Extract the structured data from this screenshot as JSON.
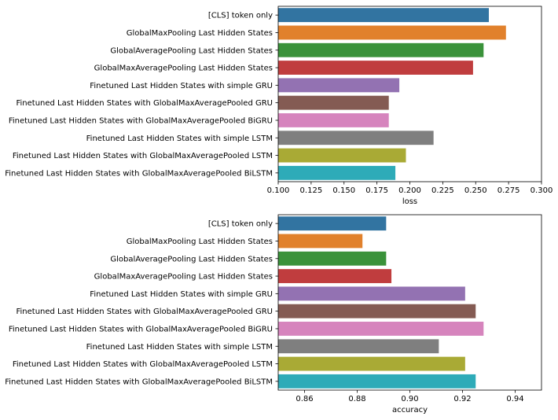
{
  "chart_data": [
    {
      "type": "bar",
      "orientation": "horizontal",
      "categories": [
        "[CLS] token only",
        "GlobalMaxPooling Last Hidden States",
        "GlobalAveragePooling Last Hidden States",
        "GlobalMaxAveragePooling Last Hidden States",
        "Finetuned Last Hidden States with simple GRU",
        "Finetuned Last Hidden States with GlobalMaxAveragePooled GRU",
        "Finetuned Last Hidden States with GlobalMaxAveragePooled BiGRU",
        "Finetuned Last Hidden States with simple LSTM",
        "Finetuned Last Hidden States with GlobalMaxAveragePooled LSTM",
        "Finetuned Last Hidden States with GlobalMaxAveragePooled BiLSTM"
      ],
      "values": [
        0.26,
        0.273,
        0.256,
        0.248,
        0.192,
        0.184,
        0.184,
        0.218,
        0.197,
        0.189
      ],
      "xlabel": "loss",
      "xlim": [
        0.1,
        0.3
      ],
      "xticks": [
        "0.100",
        "0.125",
        "0.150",
        "0.175",
        "0.200",
        "0.225",
        "0.250",
        "0.275",
        "0.300"
      ],
      "grid": false
    },
    {
      "type": "bar",
      "orientation": "horizontal",
      "categories": [
        "[CLS] token only",
        "GlobalMaxPooling Last Hidden States",
        "GlobalAveragePooling Last Hidden States",
        "GlobalMaxAveragePooling Last Hidden States",
        "Finetuned Last Hidden States with simple GRU",
        "Finetuned Last Hidden States with GlobalMaxAveragePooled GRU",
        "Finetuned Last Hidden States with GlobalMaxAveragePooled BiGRU",
        "Finetuned Last Hidden States with simple LSTM",
        "Finetuned Last Hidden States with GlobalMaxAveragePooled LSTM",
        "Finetuned Last Hidden States with GlobalMaxAveragePooled BiLSTM"
      ],
      "values": [
        0.891,
        0.882,
        0.891,
        0.893,
        0.921,
        0.925,
        0.928,
        0.911,
        0.921,
        0.925
      ],
      "xlabel": "accuracy",
      "xlim": [
        0.85,
        0.95
      ],
      "xticks": [
        "0.86",
        "0.88",
        "0.90",
        "0.92",
        "0.94"
      ],
      "grid": false
    }
  ],
  "colors": [
    "#3274a1",
    "#e1812c",
    "#3a923a",
    "#c03d3e",
    "#9372b2",
    "#845b53",
    "#d684bd",
    "#7f7f7f",
    "#a9aa35",
    "#2eabb8"
  ]
}
